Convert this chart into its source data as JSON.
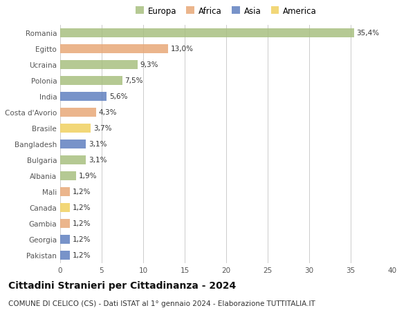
{
  "countries": [
    "Romania",
    "Egitto",
    "Ucraina",
    "Polonia",
    "India",
    "Costa d'Avorio",
    "Brasile",
    "Bangladesh",
    "Bulgaria",
    "Albania",
    "Mali",
    "Canada",
    "Gambia",
    "Georgia",
    "Pakistan"
  ],
  "values": [
    35.4,
    13.0,
    9.3,
    7.5,
    5.6,
    4.3,
    3.7,
    3.1,
    3.1,
    1.9,
    1.2,
    1.2,
    1.2,
    1.2,
    1.2
  ],
  "labels": [
    "35,4%",
    "13,0%",
    "9,3%",
    "7,5%",
    "5,6%",
    "4,3%",
    "3,7%",
    "3,1%",
    "3,1%",
    "1,9%",
    "1,2%",
    "1,2%",
    "1,2%",
    "1,2%",
    "1,2%"
  ],
  "continent": [
    "Europa",
    "Africa",
    "Europa",
    "Europa",
    "Asia",
    "Africa",
    "America",
    "Asia",
    "Europa",
    "Europa",
    "Africa",
    "America",
    "Africa",
    "Asia",
    "Asia"
  ],
  "colors": {
    "Europa": "#a8c080",
    "Africa": "#e8a878",
    "Asia": "#6080c0",
    "America": "#f0d060"
  },
  "legend_order": [
    "Europa",
    "Africa",
    "Asia",
    "America"
  ],
  "legend_colors": [
    "#a8c080",
    "#e8a878",
    "#6080c0",
    "#f0d060"
  ],
  "title": "Cittadini Stranieri per Cittadinanza - 2024",
  "subtitle": "COMUNE DI CELICO (CS) - Dati ISTAT al 1° gennaio 2024 - Elaborazione TUTTITALIA.IT",
  "xlim": [
    0,
    40
  ],
  "xticks": [
    0,
    5,
    10,
    15,
    20,
    25,
    30,
    35,
    40
  ],
  "background_color": "#ffffff",
  "grid_color": "#cccccc",
  "bar_height": 0.55,
  "title_fontsize": 10,
  "subtitle_fontsize": 7.5,
  "label_fontsize": 7.5,
  "tick_fontsize": 7.5,
  "legend_fontsize": 8.5
}
